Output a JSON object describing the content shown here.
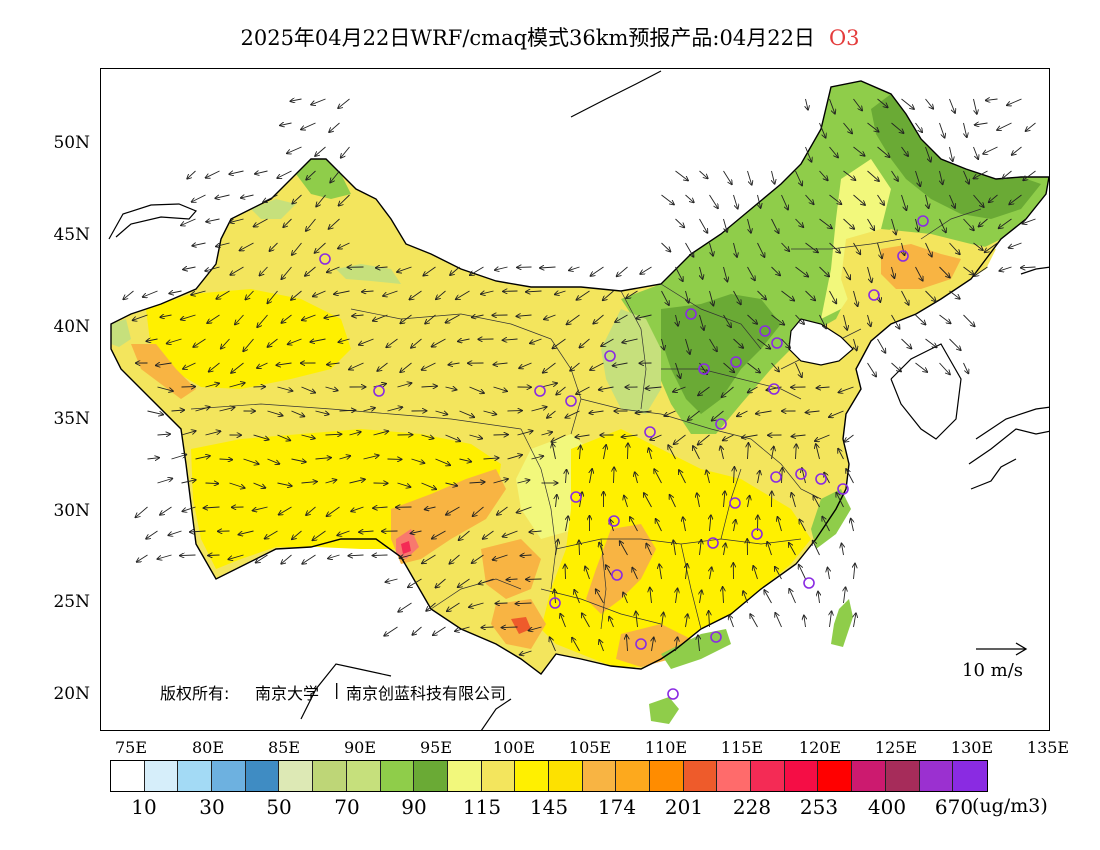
{
  "title": {
    "text": "2025年04月22日WRF/cmaq模式36km预报产品:04月22日",
    "species": "O3",
    "species_color": "#e43c3c"
  },
  "map": {
    "lat_labels": [
      "50N",
      "45N",
      "40N",
      "35N",
      "30N",
      "25N",
      "20N"
    ],
    "lon_labels": [
      "75E",
      "80E",
      "85E",
      "90E",
      "95E",
      "100E",
      "105E",
      "110E",
      "115E",
      "120E",
      "125E",
      "130E",
      "135E"
    ],
    "lat_values": [
      50,
      45,
      40,
      35,
      30,
      25,
      20
    ],
    "lon_values": [
      75,
      80,
      85,
      90,
      95,
      100,
      105,
      110,
      115,
      120,
      125,
      130,
      135
    ],
    "copyright": {
      "prefix": "版权所有:",
      "org1": "南京大学",
      "org2": "南京创蓝科技有限公司"
    },
    "wind_reference": "10 m/s",
    "city_marker_color": "#8a2be2"
  },
  "colorbar": {
    "colors": [
      "#ffffff",
      "#d6eefa",
      "#a3daf5",
      "#6db1e0",
      "#3f8cc3",
      "#dde9b5",
      "#bed677",
      "#c6e07c",
      "#8fcd4a",
      "#6aaa35",
      "#f2f87c",
      "#f3e55d",
      "#fff000",
      "#fde100",
      "#f8b443",
      "#fda91d",
      "#ff8c00",
      "#ee5b2b",
      "#ff6b6b",
      "#f42b55",
      "#f50d45",
      "#ff0000",
      "#cc1a6f",
      "#a62c5a",
      "#9b30d0",
      "#8a2be2"
    ],
    "labels": [
      "10",
      "30",
      "50",
      "70",
      "90",
      "115",
      "145",
      "174",
      "201",
      "228",
      "253",
      "400",
      "670"
    ],
    "unit": "(ug/m3)"
  }
}
